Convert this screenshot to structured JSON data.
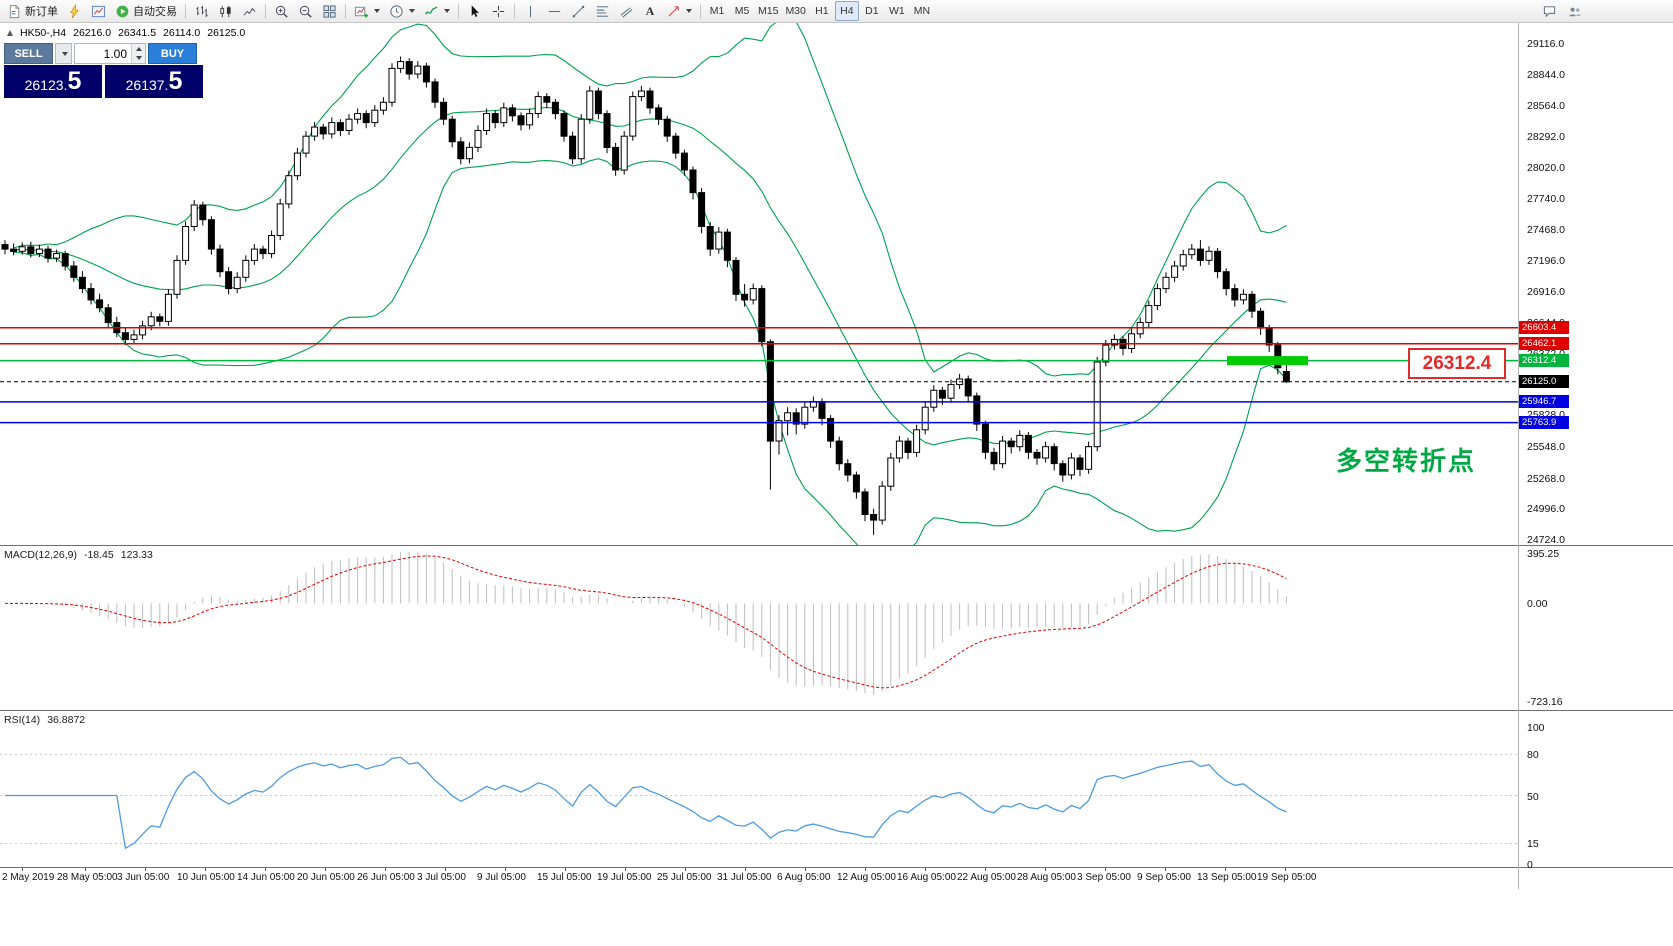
{
  "toolbar": {
    "new_order_label": "新订单",
    "autotrading_label": "自动交易",
    "text_tool_label": "A",
    "timeframes": [
      "M1",
      "M5",
      "M15",
      "M30",
      "H1",
      "H4",
      "D1",
      "W1",
      "MN"
    ],
    "active_timeframe": "H4"
  },
  "chart": {
    "symbol_line": {
      "symbol": "HK50-,H4",
      "open": "26216.0",
      "high": "26341.5",
      "low": "26114.0",
      "close": "26125.0"
    },
    "trade_panel": {
      "sell_label": "SELL",
      "buy_label": "BUY",
      "volume": "1.00",
      "sell_price_main": "26123.",
      "sell_price_big": "5",
      "buy_price_main": "26137.",
      "buy_price_big": "5"
    },
    "levels": [
      {
        "price": 26603.4,
        "label": "26603.4",
        "color": "#e00000",
        "dash": false
      },
      {
        "price": 26462.1,
        "label": "26462.1",
        "color": "#e00000",
        "dash": false
      },
      {
        "price": 26312.4,
        "label": "26312.4",
        "color": "#00b43c",
        "dash": false
      },
      {
        "price": 26125.0,
        "label": "26125.0",
        "color": "#000000",
        "dash": true
      },
      {
        "price": 25946.7,
        "label": "25946.7",
        "color": "#0000e0",
        "dash": false
      },
      {
        "price": 25763.9,
        "label": "25763.9",
        "color": "#0000e0",
        "dash": false
      }
    ],
    "highlight_bar": {
      "price": 26312.4,
      "color": "#00cc00"
    },
    "callout": {
      "text": "26312.4",
      "color": "#e32a2a"
    },
    "annotation": {
      "text": "多空转折点",
      "color": "#00a843"
    }
  },
  "macd": {
    "label": "MACD(12,26,9)",
    "value": "-18.45",
    "signal_value": "123.33",
    "scale": {
      "top": "395.25",
      "zero": "0.00",
      "bottom": "-723.16"
    }
  },
  "rsi": {
    "label": "RSI(14)",
    "value": "36.8872",
    "scale_labels": [
      "100",
      "80",
      "50",
      "15",
      "0"
    ],
    "level_lines": [
      80,
      50,
      15
    ]
  },
  "chart_data": {
    "type": "candlestick",
    "symbol": "HK50-",
    "timeframe": "H4",
    "price_axis": {
      "max": 29116.0,
      "min": 24724.0,
      "labels": [
        "29116.0",
        "28844.0",
        "28564.0",
        "28292.0",
        "28020.0",
        "27740.0",
        "27468.0",
        "27196.0",
        "26916.0",
        "26644.0",
        "26372.0",
        "26100.0",
        "25828.0",
        "25548.0",
        "25268.0",
        "24996.0",
        "24724.0"
      ]
    },
    "time_labels": [
      "2 May 2019",
      "28 May 05:00",
      "3 Jun 05:00",
      "10 Jun 05:00",
      "14 Jun 05:00",
      "20 Jun 05:00",
      "26 Jun 05:00",
      "3 Jul 05:00",
      "9 Jul 05:00",
      "15 Jul 05:00",
      "19 Jul 05:00",
      "25 Jul 05:00",
      "31 Jul 05:00",
      "6 Aug 05:00",
      "12 Aug 05:00",
      "16 Aug 05:00",
      "22 Aug 05:00",
      "28 Aug 05:00",
      "3 Sep 05:00",
      "9 Sep 05:00",
      "13 Sep 05:00",
      "19 Sep 05:00"
    ],
    "bollinger": {
      "period": 20,
      "deviation": 2,
      "color": "#00a050"
    },
    "candles": [
      [
        27340,
        27380,
        27255,
        27300
      ],
      [
        27300,
        27350,
        27245,
        27280
      ],
      [
        27280,
        27360,
        27250,
        27320
      ],
      [
        27320,
        27365,
        27225,
        27260
      ],
      [
        27260,
        27340,
        27230,
        27300
      ],
      [
        27300,
        27330,
        27180,
        27220
      ],
      [
        27220,
        27295,
        27185,
        27260
      ],
      [
        27260,
        27285,
        27110,
        27150
      ],
      [
        27150,
        27195,
        27010,
        27050
      ],
      [
        27050,
        27105,
        26910,
        26950
      ],
      [
        26950,
        27000,
        26810,
        26850
      ],
      [
        26850,
        26905,
        26740,
        26780
      ],
      [
        26780,
        26815,
        26610,
        26650
      ],
      [
        26650,
        26700,
        26520,
        26560
      ],
      [
        26560,
        26610,
        26450,
        26500
      ],
      [
        26500,
        26585,
        26460,
        26540
      ],
      [
        26540,
        26665,
        26500,
        26620
      ],
      [
        26620,
        26745,
        26580,
        26700
      ],
      [
        26700,
        26730,
        26615,
        26660
      ],
      [
        26660,
        26945,
        26620,
        26900
      ],
      [
        26900,
        27245,
        26860,
        27200
      ],
      [
        27200,
        27545,
        27160,
        27500
      ],
      [
        27500,
        27735,
        27460,
        27690
      ],
      [
        27690,
        27720,
        27510,
        27560
      ],
      [
        27560,
        27590,
        27250,
        27300
      ],
      [
        27300,
        27340,
        27050,
        27100
      ],
      [
        27100,
        27140,
        26900,
        26950
      ],
      [
        26950,
        27095,
        26910,
        27050
      ],
      [
        27050,
        27245,
        27010,
        27200
      ],
      [
        27200,
        27345,
        27160,
        27300
      ],
      [
        27300,
        27330,
        27210,
        27260
      ],
      [
        27260,
        27465,
        27220,
        27420
      ],
      [
        27420,
        27745,
        27380,
        27700
      ],
      [
        27700,
        27995,
        27660,
        27950
      ],
      [
        27950,
        28195,
        27910,
        28150
      ],
      [
        28150,
        28345,
        28110,
        28300
      ],
      [
        28300,
        28425,
        28260,
        28380
      ],
      [
        28380,
        28410,
        28270,
        28320
      ],
      [
        28320,
        28465,
        28280,
        28420
      ],
      [
        28420,
        28450,
        28300,
        28350
      ],
      [
        28350,
        28495,
        28310,
        28450
      ],
      [
        28450,
        28545,
        28410,
        28500
      ],
      [
        28500,
        28530,
        28370,
        28420
      ],
      [
        28420,
        28575,
        28380,
        28530
      ],
      [
        28530,
        28645,
        28490,
        28600
      ],
      [
        28600,
        28945,
        28560,
        28900
      ],
      [
        28900,
        29005,
        28860,
        28960
      ],
      [
        28960,
        28990,
        28800,
        28850
      ],
      [
        28850,
        28965,
        28810,
        28920
      ],
      [
        28920,
        28950,
        28730,
        28780
      ],
      [
        28780,
        28810,
        28550,
        28600
      ],
      [
        28600,
        28640,
        28400,
        28450
      ],
      [
        28450,
        28480,
        28200,
        28250
      ],
      [
        28250,
        28290,
        28050,
        28100
      ],
      [
        28100,
        28245,
        28060,
        28200
      ],
      [
        28200,
        28395,
        28160,
        28350
      ],
      [
        28350,
        28545,
        28310,
        28500
      ],
      [
        28500,
        28530,
        28370,
        28420
      ],
      [
        28420,
        28595,
        28380,
        28550
      ],
      [
        28550,
        28580,
        28430,
        28480
      ],
      [
        28480,
        28510,
        28350,
        28400
      ],
      [
        28400,
        28545,
        28360,
        28500
      ],
      [
        28500,
        28695,
        28460,
        28650
      ],
      [
        28650,
        28680,
        28550,
        28600
      ],
      [
        28600,
        28630,
        28450,
        28500
      ],
      [
        28500,
        28530,
        28250,
        28300
      ],
      [
        28300,
        28340,
        28050,
        28100
      ],
      [
        28100,
        28495,
        28060,
        28450
      ],
      [
        28450,
        28745,
        28410,
        28700
      ],
      [
        28700,
        28730,
        28450,
        28500
      ],
      [
        28500,
        28530,
        28150,
        28200
      ],
      [
        28200,
        28240,
        27950,
        28000
      ],
      [
        28000,
        28345,
        27960,
        28300
      ],
      [
        28300,
        28695,
        28260,
        28650
      ],
      [
        28650,
        28745,
        28610,
        28700
      ],
      [
        28700,
        28730,
        28500,
        28550
      ],
      [
        28550,
        28580,
        28400,
        28450
      ],
      [
        28450,
        28480,
        28250,
        28300
      ],
      [
        28300,
        28330,
        28100,
        28150
      ],
      [
        28150,
        28180,
        27950,
        28000
      ],
      [
        28000,
        28030,
        27740,
        27800
      ],
      [
        27800,
        27840,
        27440,
        27500
      ],
      [
        27500,
        27540,
        27240,
        27300
      ],
      [
        27300,
        27495,
        27260,
        27450
      ],
      [
        27450,
        27480,
        27140,
        27200
      ],
      [
        27200,
        27230,
        26840,
        26900
      ],
      [
        26900,
        26990,
        26790,
        26850
      ],
      [
        26850,
        26995,
        26810,
        26950
      ],
      [
        26950,
        26980,
        26440,
        26480
      ],
      [
        26480,
        26500,
        25170,
        25600
      ],
      [
        25600,
        25830,
        25480,
        25780
      ],
      [
        25780,
        25900,
        25650,
        25850
      ],
      [
        25850,
        25890,
        25660,
        25750
      ],
      [
        25750,
        25945,
        25710,
        25900
      ],
      [
        25900,
        25995,
        25860,
        25950
      ],
      [
        25950,
        25980,
        25740,
        25800
      ],
      [
        25800,
        25830,
        25540,
        25600
      ],
      [
        25600,
        25640,
        25340,
        25400
      ],
      [
        25400,
        25440,
        25240,
        25300
      ],
      [
        25300,
        25330,
        25090,
        25150
      ],
      [
        25150,
        25180,
        24890,
        24950
      ],
      [
        24950,
        25000,
        24770,
        24900
      ],
      [
        24900,
        25245,
        24860,
        25200
      ],
      [
        25200,
        25495,
        25160,
        25450
      ],
      [
        25450,
        25645,
        25410,
        25600
      ],
      [
        25600,
        25630,
        25440,
        25500
      ],
      [
        25500,
        25745,
        25460,
        25700
      ],
      [
        25700,
        25945,
        25660,
        25900
      ],
      [
        25900,
        26095,
        25860,
        26050
      ],
      [
        26050,
        26080,
        25920,
        25980
      ],
      [
        25980,
        26145,
        25940,
        26100
      ],
      [
        26100,
        26195,
        26060,
        26150
      ],
      [
        26150,
        26180,
        25940,
        26000
      ],
      [
        26000,
        26030,
        25690,
        25750
      ],
      [
        25750,
        25780,
        25440,
        25500
      ],
      [
        25500,
        25540,
        25340,
        25400
      ],
      [
        25400,
        25645,
        25360,
        25600
      ],
      [
        25600,
        25630,
        25490,
        25550
      ],
      [
        25550,
        25695,
        25510,
        25650
      ],
      [
        25650,
        25680,
        25440,
        25500
      ],
      [
        25500,
        25530,
        25390,
        25450
      ],
      [
        25450,
        25595,
        25410,
        25550
      ],
      [
        25550,
        25580,
        25340,
        25400
      ],
      [
        25400,
        25430,
        25240,
        25300
      ],
      [
        25300,
        25495,
        25260,
        25450
      ],
      [
        25450,
        25480,
        25290,
        25350
      ],
      [
        25350,
        25595,
        25310,
        25550
      ],
      [
        25550,
        26345,
        25510,
        26300
      ],
      [
        26300,
        26495,
        26260,
        26450
      ],
      [
        26450,
        26545,
        26410,
        26500
      ],
      [
        26500,
        26530,
        26360,
        26420
      ],
      [
        26420,
        26595,
        26380,
        26550
      ],
      [
        26550,
        26695,
        26510,
        26650
      ],
      [
        26650,
        26845,
        26610,
        26800
      ],
      [
        26800,
        26995,
        26760,
        26950
      ],
      [
        26950,
        27095,
        26910,
        27050
      ],
      [
        27050,
        27195,
        27010,
        27150
      ],
      [
        27150,
        27295,
        27110,
        27250
      ],
      [
        27250,
        27345,
        27210,
        27300
      ],
      [
        27300,
        27380,
        27150,
        27200
      ],
      [
        27200,
        27325,
        27160,
        27280
      ],
      [
        27280,
        27310,
        27040,
        27100
      ],
      [
        27100,
        27130,
        26890,
        26950
      ],
      [
        26950,
        26990,
        26790,
        26850
      ],
      [
        26850,
        26945,
        26810,
        26900
      ],
      [
        26900,
        26930,
        26690,
        26750
      ],
      [
        26750,
        26780,
        26540,
        26600
      ],
      [
        26600,
        26630,
        26390,
        26450
      ],
      [
        26450,
        26480,
        26190,
        26250
      ],
      [
        26216,
        26341.5,
        26114,
        26125
      ]
    ]
  }
}
